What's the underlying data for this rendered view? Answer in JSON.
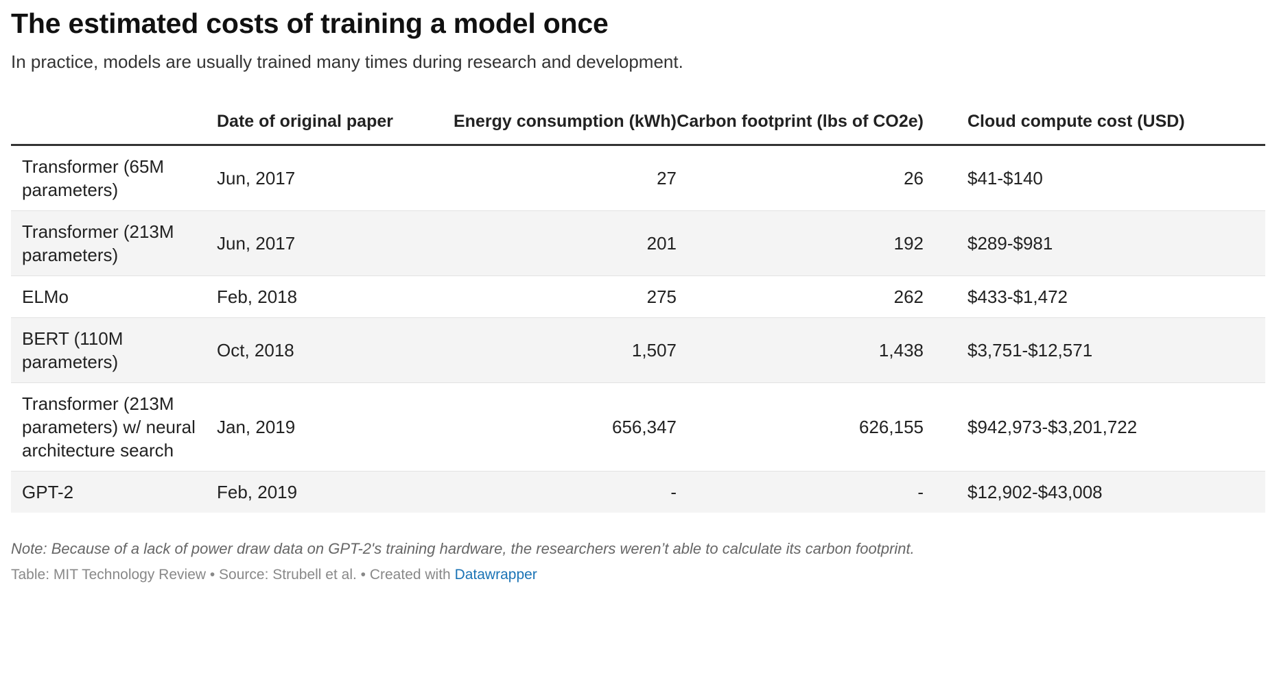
{
  "header": {
    "title": "The estimated costs of training a model once",
    "subtitle": "In practice, models are usually trained many times during research and development."
  },
  "chart_data": {
    "type": "table",
    "columns": [
      "",
      "Date of original paper",
      "Energy consumption (kWh)",
      "Carbon footprint (lbs of CO2e)",
      "Cloud compute cost (USD)"
    ],
    "rows": [
      [
        "Transformer (65M parameters)",
        "Jun, 2017",
        "27",
        "26",
        "$41-$140"
      ],
      [
        "Transformer (213M parameters)",
        "Jun, 2017",
        "201",
        "192",
        "$289-$981"
      ],
      [
        "ELMo",
        "Feb, 2018",
        "275",
        "262",
        "$433-$1,472"
      ],
      [
        "BERT (110M parameters)",
        "Oct, 2018",
        "1,507",
        "1,438",
        "$3,751-$12,571"
      ],
      [
        "Transformer (213M parameters) w/ neural architecture search",
        "Jan, 2019",
        "656,347",
        "626,155",
        "$942,973-$3,201,722"
      ],
      [
        "GPT-2",
        "Feb, 2019",
        "-",
        "-",
        "$12,902-$43,008"
      ]
    ]
  },
  "footer": {
    "note": "Note: Because of a lack of power draw data on GPT-2's training hardware, the researchers weren’t able to calculate its carbon footprint.",
    "credit_prefix": "Table: MIT Technology Review • Source: Strubell et al. • Created with ",
    "credit_link": "Datawrapper"
  },
  "colors": {
    "rule": "#333333",
    "stripe": "#f4f4f4",
    "link": "#1a73b5"
  }
}
